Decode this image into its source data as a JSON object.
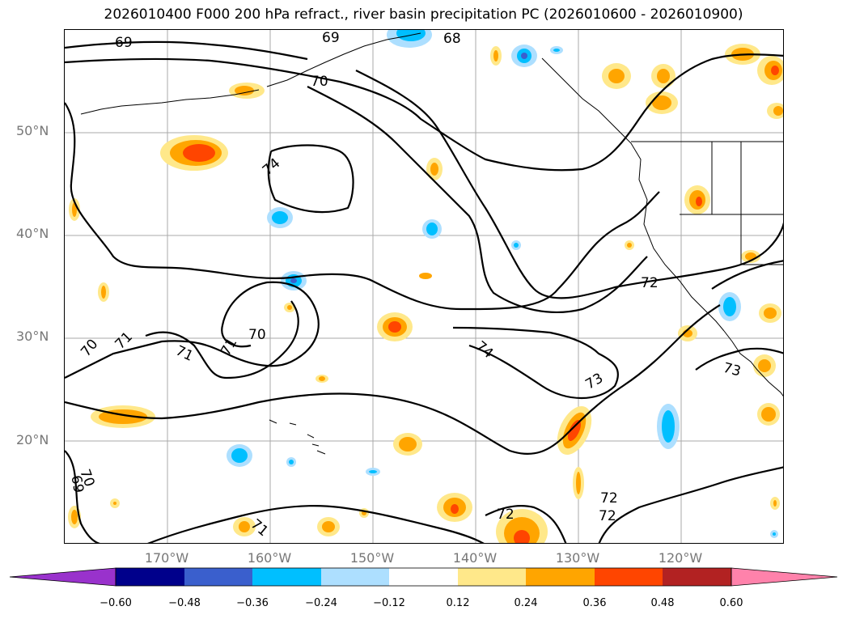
{
  "title": "2026010400 F000 200 hPa refract., river basin precipitation PC (2026010600 - 2026010900)",
  "map": {
    "lat_labels": [
      "50°N",
      "40°N",
      "30°N",
      "20°N"
    ],
    "lon_labels": [
      "170°W",
      "160°W",
      "150°W",
      "140°W",
      "130°W",
      "120°W"
    ],
    "contour_labels": [
      "69",
      "69",
      "68",
      "70",
      "74",
      "70",
      "71",
      "71",
      "70",
      "71",
      "72",
      "74",
      "73",
      "73",
      "72",
      "72",
      "72",
      "71",
      "69",
      "70"
    ]
  },
  "colorbar": {
    "ticks": [
      "−0.60",
      "−0.48",
      "−0.36",
      "−0.24",
      "−0.12",
      "0.12",
      "0.24",
      "0.36",
      "0.48",
      "0.60"
    ],
    "colors": [
      "#9932CC",
      "#00008B",
      "#3A5FCD",
      "#00BFFF",
      "#ADDFFF",
      "#FFFFFF",
      "#FFE88A",
      "#FFA500",
      "#FF4500",
      "#B22222",
      "#FF82AB"
    ]
  },
  "colors": {
    "grid": "#aaaaaa",
    "contour": "#000000",
    "axis_label": "#777777"
  }
}
